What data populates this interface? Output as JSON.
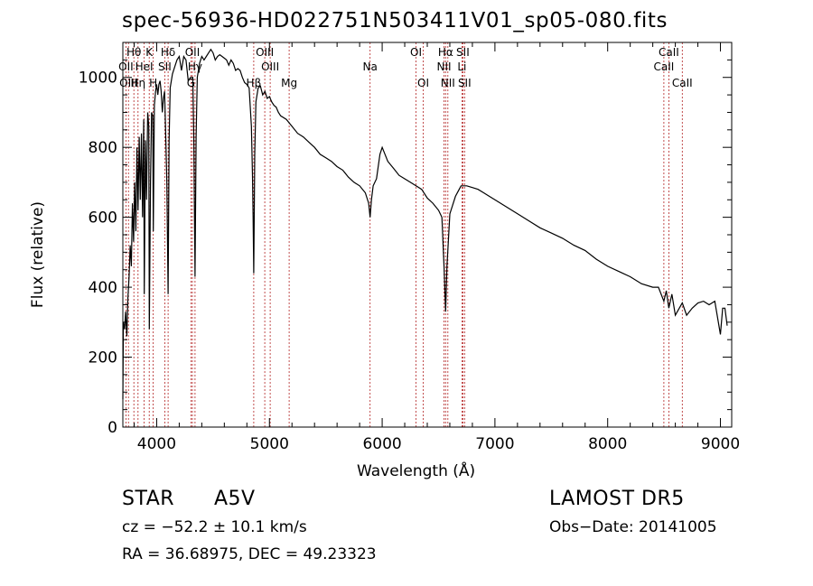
{
  "chart_data": {
    "type": "line",
    "title": "spec-56936-HD022751N503411V01_sp05-080.fits",
    "xlabel": "Wavelength (Å)",
    "ylabel": "Flux (relative)",
    "xlim": [
      3700,
      9100
    ],
    "ylim": [
      0,
      1100
    ],
    "xticks": [
      4000,
      5000,
      6000,
      7000,
      8000,
      9000
    ],
    "yticks": [
      0,
      200,
      400,
      600,
      800,
      1000
    ],
    "grid": false,
    "series": [
      {
        "x": [
          3700,
          3705,
          3715,
          3725,
          3735,
          3745,
          3755,
          3765,
          3775,
          3785,
          3795,
          3805,
          3815,
          3825,
          3835,
          3845,
          3855,
          3865,
          3875,
          3885,
          3890,
          3900,
          3910,
          3920,
          3930,
          3935,
          3945,
          3955,
          3965,
          3970,
          3980,
          3990,
          4000,
          4010,
          4020,
          4030,
          4040,
          4050,
          4060,
          4070,
          4080,
          4090,
          4101,
          4110,
          4120,
          4140,
          4160,
          4180,
          4200,
          4220,
          4240,
          4260,
          4280,
          4300,
          4320,
          4330,
          4340,
          4350,
          4360,
          4380,
          4400,
          4420,
          4440,
          4460,
          4480,
          4500,
          4520,
          4540,
          4560,
          4580,
          4600,
          4620,
          4640,
          4660,
          4680,
          4700,
          4720,
          4740,
          4760,
          4780,
          4800,
          4820,
          4840,
          4850,
          4855,
          4861,
          4866,
          4870,
          4880,
          4900,
          4920,
          4940,
          4960,
          4980,
          5000,
          5020,
          5040,
          5060,
          5080,
          5100,
          5150,
          5200,
          5250,
          5300,
          5350,
          5400,
          5450,
          5500,
          5550,
          5600,
          5650,
          5700,
          5750,
          5800,
          5850,
          5880,
          5893,
          5905,
          5920,
          5950,
          5980,
          6000,
          6050,
          6100,
          6150,
          6200,
          6250,
          6300,
          6350,
          6400,
          6450,
          6500,
          6530,
          6550,
          6563,
          6575,
          6600,
          6650,
          6700,
          6750,
          6800,
          6850,
          6900,
          6950,
          7000,
          7100,
          7200,
          7300,
          7400,
          7500,
          7600,
          7650,
          7700,
          7800,
          7900,
          8000,
          8100,
          8200,
          8300,
          8400,
          8450,
          8498,
          8520,
          8542,
          8570,
          8600,
          8662,
          8700,
          8750,
          8800,
          8850,
          8900,
          8950,
          9000,
          9020,
          9040,
          9060
        ],
        "y": [
          80,
          300,
          280,
          330,
          260,
          370,
          430,
          520,
          460,
          640,
          530,
          700,
          560,
          800,
          620,
          830,
          650,
          840,
          600,
          880,
          380,
          820,
          650,
          900,
          860,
          280,
          700,
          900,
          890,
          560,
          920,
          960,
          980,
          950,
          980,
          990,
          960,
          900,
          940,
          960,
          840,
          700,
          380,
          820,
          970,
          1010,
          1030,
          1050,
          1060,
          1020,
          1060,
          1050,
          990,
          1000,
          1000,
          820,
          430,
          830,
          1000,
          1040,
          1060,
          1050,
          1060,
          1070,
          1080,
          1070,
          1050,
          1060,
          1065,
          1060,
          1055,
          1050,
          1035,
          1050,
          1040,
          1020,
          1025,
          1020,
          1000,
          985,
          980,
          970,
          860,
          720,
          600,
          440,
          620,
          780,
          930,
          970,
          975,
          950,
          960,
          940,
          945,
          930,
          920,
          915,
          900,
          890,
          880,
          860,
          840,
          830,
          815,
          800,
          780,
          770,
          760,
          745,
          735,
          715,
          700,
          690,
          670,
          640,
          600,
          650,
          690,
          710,
          780,
          800,
          760,
          740,
          720,
          710,
          700,
          690,
          680,
          655,
          640,
          620,
          600,
          450,
          330,
          460,
          610,
          660,
          690,
          690,
          685,
          680,
          670,
          660,
          650,
          630,
          610,
          590,
          570,
          555,
          540,
          530,
          520,
          505,
          480,
          460,
          445,
          430,
          410,
          400,
          400,
          360,
          390,
          340,
          380,
          320,
          355,
          320,
          340,
          355,
          360,
          350,
          360,
          265,
          340,
          340,
          290
        ]
      }
    ],
    "line_labels": [
      {
        "label": "Hθ",
        "x": 3798,
        "row": 0
      },
      {
        "label": "OII",
        "x": 3727,
        "row": 1
      },
      {
        "label": "OIII",
        "x": 3750,
        "row": 2
      },
      {
        "label": "K",
        "x": 3934,
        "row": 0
      },
      {
        "label": "HeI",
        "x": 3889,
        "row": 1
      },
      {
        "label": "Hη",
        "x": 3835,
        "row": 2
      },
      {
        "label": "Hδ",
        "x": 4101,
        "row": 0
      },
      {
        "label": "SII",
        "x": 4072,
        "row": 1
      },
      {
        "label": "H",
        "x": 3969,
        "row": 2
      },
      {
        "label": "OII",
        "x": 4317,
        "row": 0
      },
      {
        "label": "Hγ",
        "x": 4340,
        "row": 1
      },
      {
        "label": "G",
        "x": 4304,
        "row": 2
      },
      {
        "label": "OIII",
        "x": 4959,
        "row": 0
      },
      {
        "label": "OIII",
        "x": 5007,
        "row": 1
      },
      {
        "label": "Hβ",
        "x": 4861,
        "row": 2
      },
      {
        "label": "Mg",
        "x": 5175,
        "row": 2
      },
      {
        "label": "Na",
        "x": 5893,
        "row": 1
      },
      {
        "label": "OI",
        "x": 6300,
        "row": 0
      },
      {
        "label": "OI",
        "x": 6364,
        "row": 2
      },
      {
        "label": "Hα",
        "x": 6563,
        "row": 0
      },
      {
        "label": "SII",
        "x": 6716,
        "row": 0
      },
      {
        "label": "NII",
        "x": 6548,
        "row": 1
      },
      {
        "label": "Li",
        "x": 6708,
        "row": 1
      },
      {
        "label": "NII",
        "x": 6583,
        "row": 2
      },
      {
        "label": "SII",
        "x": 6731,
        "row": 2
      },
      {
        "label": "CaII",
        "x": 8542,
        "row": 0
      },
      {
        "label": "CaII",
        "x": 8498,
        "row": 1
      },
      {
        "label": "CaII",
        "x": 8662,
        "row": 2
      }
    ],
    "line_marks": [
      3727,
      3750,
      3798,
      3835,
      3889,
      3934,
      3969,
      4072,
      4101,
      4304,
      4317,
      4340,
      4861,
      4959,
      5007,
      5175,
      5893,
      6300,
      6364,
      6548,
      6563,
      6583,
      6708,
      6716,
      6731,
      8498,
      8542,
      8662
    ]
  },
  "info": {
    "object_class": "STAR",
    "subclass": "A5V",
    "survey": "LAMOST DR5",
    "redshift": "cz = −52.2 ± 10.1 km/s",
    "obs_date": "Obs−Date: 20141005",
    "coordinates": "RA =  36.68975, DEC =  49.23323"
  },
  "colors": {
    "spectrum": "#000000",
    "line_marker": "#b22222",
    "axes": "#000000"
  }
}
